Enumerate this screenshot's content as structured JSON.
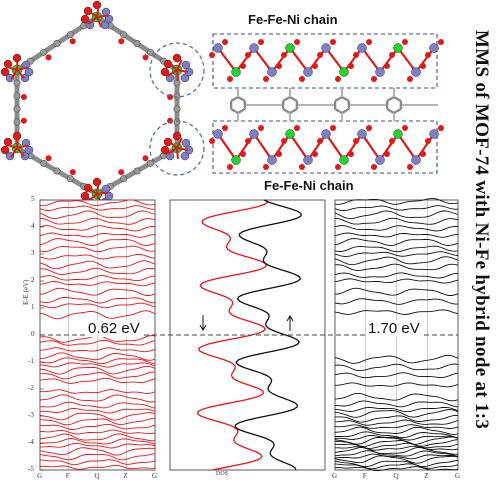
{
  "structure": {
    "chain_label_top": "Fe-Fe-Ni  chain",
    "chain_label_bottom": "Fe-Fe-Ni  chain",
    "side_title": "MMS of MOF-74 with Ni-Fe hybrid node at 1:3"
  },
  "band_plot": {
    "ylabel": "E-E (eV)",
    "yticks": [
      "5",
      "4",
      "3",
      "2",
      "1",
      "0",
      "-1",
      "-2",
      "-3",
      "-4",
      "-5"
    ],
    "kpoints": [
      "G",
      "F",
      "Q",
      "Z",
      "G"
    ],
    "gap_left": "0.62 eV",
    "gap_right": "1.70 eV",
    "dos_label": "DOS",
    "colors": {
      "spin_up": "#e8141c",
      "spin_down": "#111111",
      "fe": "#7f7fc8",
      "ni": "#21d42a",
      "o": "#e01a1a",
      "c": "#8c8c8c"
    }
  },
  "chart_data": [
    {
      "type": "line",
      "title": "",
      "xlabel": "",
      "ylabel": "E-E (eV)",
      "ylim": [
        -5,
        5
      ],
      "categories": [
        "G",
        "F",
        "Q",
        "Z",
        "G"
      ],
      "annotation": "0.62 eV",
      "series": []
    },
    {
      "type": "line",
      "title": "",
      "xlabel": "DOS",
      "ylabel": "",
      "ylim": [
        -5,
        5
      ],
      "series": []
    },
    {
      "type": "line",
      "title": "",
      "xlabel": "",
      "ylabel": "",
      "ylim": [
        -5,
        5
      ],
      "categories": [
        "G",
        "F",
        "Q",
        "Z",
        "G"
      ],
      "annotation": "1.70 eV",
      "series": []
    }
  ]
}
